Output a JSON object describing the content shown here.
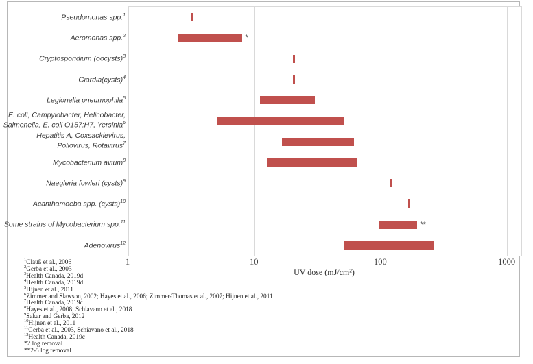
{
  "chart_data": {
    "type": "bar",
    "subtype": "horizontal-range",
    "x_scale": "log",
    "xlabel": "UV dose (mJ/cm²)",
    "x_ticks": [
      1,
      10,
      100,
      1000
    ],
    "x_min": 1,
    "x_max": 1290,
    "grid": true,
    "bar_color": "#c0504d",
    "grid_color": "#d9d9d9",
    "categories": [
      {
        "lines": [
          "Pseudomonas spp."
        ],
        "sup": "1",
        "min": 3.2,
        "max": 3.2,
        "annotation": ""
      },
      {
        "lines": [
          "Aeromonas spp."
        ],
        "sup": "2",
        "min": 2.5,
        "max": 8,
        "annotation": "*"
      },
      {
        "lines": [
          "Cryptosporidium (oocysts)"
        ],
        "sup": "3",
        "min": 20.5,
        "max": 20.5,
        "annotation": ""
      },
      {
        "lines": [
          "Giardia(cysts)"
        ],
        "sup": "4",
        "min": 20.5,
        "max": 20.5,
        "annotation": ""
      },
      {
        "lines": [
          "Legionella pneumophila"
        ],
        "sup": "5",
        "min": 11,
        "max": 30,
        "annotation": ""
      },
      {
        "lines": [
          "E. coli, Campylobacter, Helicobacter,",
          "Salmonella, E. coli O157:H7, Yersinia"
        ],
        "sup": "6",
        "min": 5,
        "max": 51,
        "annotation": ""
      },
      {
        "lines": [
          "Hepatitis A, Coxsackievirus,",
          "Poliovirus, Rotavirus"
        ],
        "sup": "7",
        "min": 16.5,
        "max": 61,
        "annotation": ""
      },
      {
        "lines": [
          "Mycobacterium avium"
        ],
        "sup": "8",
        "min": 12.5,
        "max": 64,
        "annotation": ""
      },
      {
        "lines": [
          "Naegleria fowleri (cysts)"
        ],
        "sup": "9",
        "min": 121,
        "max": 121,
        "annotation": ""
      },
      {
        "lines": [
          "Acanthamoeba spp. (cysts)"
        ],
        "sup": "10",
        "min": 167,
        "max": 167,
        "annotation": ""
      },
      {
        "lines": [
          "Some strains of Mycobacterium spp."
        ],
        "sup": "11",
        "min": 96,
        "max": 194,
        "annotation": "**"
      },
      {
        "lines": [
          "Adenovirus"
        ],
        "sup": "12",
        "min": 51,
        "max": 262,
        "annotation": ""
      }
    ],
    "footnotes": [
      {
        "sup": "1",
        "text": "Clauß et al., 2006"
      },
      {
        "sup": "2",
        "text": "Gerba et al., 2003"
      },
      {
        "sup": "3",
        "text": "Health Canada, 2019d"
      },
      {
        "sup": "4",
        "text": "Health Canada, 2019d"
      },
      {
        "sup": "5",
        "text": "Hijnen et al., 2011"
      },
      {
        "sup": "6",
        "text": "Zimmer and Slawson, 2002; Hayes et al., 2006; Zimmer-Thomas et al., 2007; Hijnen et al., 2011"
      },
      {
        "sup": "7",
        "text": "Health Canada, 2019c"
      },
      {
        "sup": "8",
        "text": "Hayes et al., 2008; Schiavano et al., 2018"
      },
      {
        "sup": "9",
        "text": "Sakar and Gerba, 2012"
      },
      {
        "sup": "10",
        "text": "Hijnen et al., 2011"
      },
      {
        "sup": "11",
        "text": "Gerba et al., 2003, Schiavano et al., 2018"
      },
      {
        "sup": "12",
        "text": "Health Canada, 2019c"
      }
    ],
    "notes": [
      {
        "mark": "*",
        "text": "2 log removal"
      },
      {
        "mark": "**",
        "text": "2-5 log removal"
      }
    ]
  }
}
